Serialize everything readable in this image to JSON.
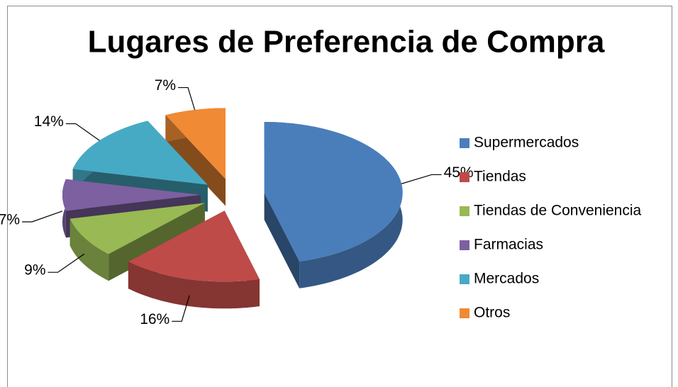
{
  "chart_data": {
    "type": "pie3d",
    "title": "Lugares de Preferencia de Compra",
    "categories": [
      "Supermercados",
      "Tiendas",
      "Tiendas de Conveniencia",
      "Farmacias",
      "Mercados",
      "Otros"
    ],
    "values": [
      45,
      16,
      9,
      7,
      14,
      7
    ],
    "value_labels": [
      "45%",
      "16%",
      "9%",
      "7%",
      "14%",
      "7%"
    ],
    "colors": [
      "#4a7ebb",
      "#be4b48",
      "#98b954",
      "#7d60a0",
      "#46aac5",
      "#f08a35"
    ],
    "legend": "right"
  }
}
